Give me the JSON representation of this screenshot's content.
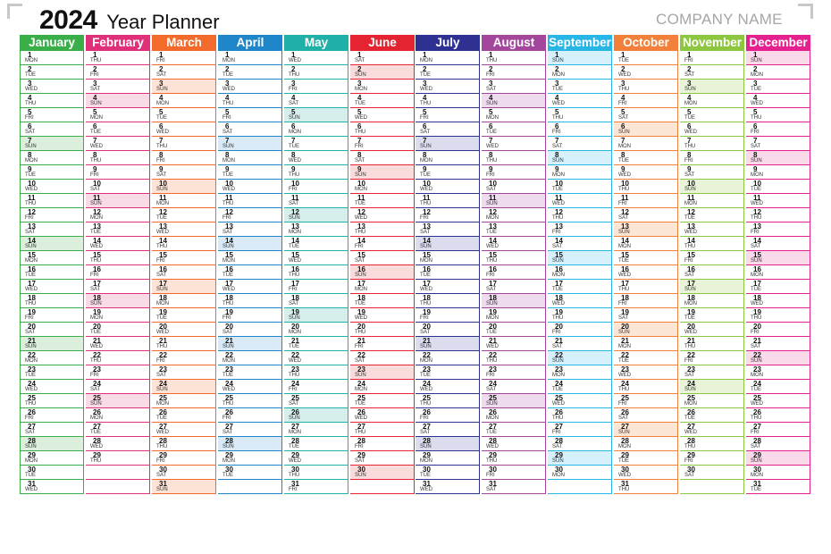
{
  "header": {
    "year": "2024",
    "subtitle": "Year Planner",
    "company": "COMPANY NAME"
  },
  "months": [
    {
      "name": "January",
      "color": "#3aae49",
      "tint": "#dcefdc",
      "days": 31,
      "start": 1
    },
    {
      "name": "February",
      "color": "#e1307a",
      "tint": "#f9dbe7",
      "days": 29,
      "start": 4
    },
    {
      "name": "March",
      "color": "#f26b2b",
      "tint": "#fde3d5",
      "days": 31,
      "start": 5
    },
    {
      "name": "April",
      "color": "#1f87c9",
      "tint": "#d9eaf6",
      "days": 30,
      "start": 1
    },
    {
      "name": "May",
      "color": "#1fb1a7",
      "tint": "#d6efed",
      "days": 31,
      "start": 3
    },
    {
      "name": "June",
      "color": "#e52431",
      "tint": "#fbdcdc",
      "days": 30,
      "start": 6
    },
    {
      "name": "July",
      "color": "#2e3192",
      "tint": "#dcdcef",
      "days": 31,
      "start": 1
    },
    {
      "name": "August",
      "color": "#a3479c",
      "tint": "#eedcee",
      "days": 31,
      "start": 4
    },
    {
      "name": "September",
      "color": "#27b6e6",
      "tint": "#d6f1fb",
      "days": 30,
      "start": 0
    },
    {
      "name": "October",
      "color": "#f2803a",
      "tint": "#fde5d3",
      "days": 31,
      "start": 2
    },
    {
      "name": "November",
      "color": "#8dc63f",
      "tint": "#e8f3d8",
      "days": 30,
      "start": 5
    },
    {
      "name": "December",
      "color": "#e5208f",
      "tint": "#f9d9ea",
      "days": 31,
      "start": 0
    }
  ],
  "weekdays": [
    "SUN",
    "MON",
    "TUE",
    "WED",
    "THU",
    "FRI",
    "SAT"
  ]
}
